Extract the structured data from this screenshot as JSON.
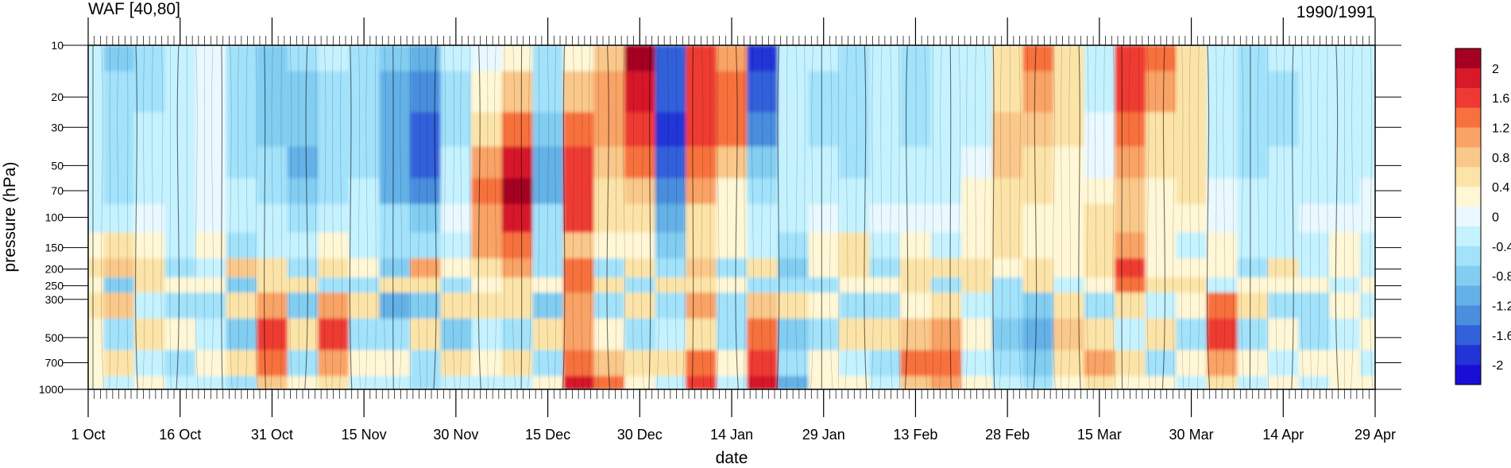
{
  "chart_data": {
    "type": "heatmap",
    "title": "WAF [40,80]",
    "subtitle": "1990/1991",
    "xlabel": "date",
    "ylabel": "pressure (hPa)",
    "y_scale": "log",
    "y_inverted": true,
    "ylim": [
      1000,
      10
    ],
    "xlim": [
      "1 Oct",
      "29 Apr"
    ],
    "x_ticks": [
      "1 Oct",
      "16 Oct",
      "31 Oct",
      "15 Nov",
      "30 Nov",
      "15 Dec",
      "30 Dec",
      "14 Jan",
      "29 Jan",
      "13 Feb",
      "28 Feb",
      "15 Mar",
      "30 Mar",
      "14 Apr",
      "29 Apr"
    ],
    "y_ticks": [
      10,
      20,
      30,
      50,
      70,
      100,
      150,
      200,
      250,
      300,
      500,
      700,
      1000
    ],
    "colorbar": {
      "labels": [
        "2",
        "1.6",
        "1.2",
        "0.8",
        "0.4",
        "0",
        "-0.4",
        "-0.8",
        "-1.2",
        "-1.6",
        "-2"
      ],
      "colors": [
        "#a50021",
        "#d7192a",
        "#ee3a33",
        "#f7713e",
        "#f9a366",
        "#f9c88a",
        "#fce4a8",
        "#fff7d6",
        "#e9f9ff",
        "#c5f2ff",
        "#a2e2fb",
        "#82cdf2",
        "#63b1e6",
        "#4a8ede",
        "#3161db",
        "#2234d6",
        "#1a0ed6"
      ]
    },
    "day_ticks": {
      "start": "1 Oct",
      "end": "29 Apr",
      "step_days": 1
    },
    "sample_days": [
      0,
      5,
      10,
      15,
      20,
      25,
      30,
      35,
      40,
      45,
      50,
      55,
      60,
      65,
      70,
      75,
      80,
      85,
      90,
      95,
      100,
      105,
      110,
      115,
      120,
      125,
      130,
      135,
      140,
      145,
      150,
      155,
      160,
      165,
      170,
      175,
      180,
      185,
      190,
      195,
      200,
      205,
      210
    ],
    "upper_levels_hPa": [
      10,
      20,
      30,
      50,
      70,
      100
    ],
    "lower_levels_hPa": [
      150,
      200,
      250,
      300,
      500,
      700,
      1000
    ],
    "upper_values": [
      [
        -0.3,
        -0.2,
        -0.2,
        -0.3,
        -0.3,
        -0.2
      ],
      [
        -0.8,
        -0.7,
        -0.7,
        -0.6,
        -0.5,
        -0.3
      ],
      [
        -0.5,
        -0.5,
        -0.4,
        -0.3,
        -0.2,
        -0.1
      ],
      [
        -0.2,
        -0.2,
        -0.3,
        -0.3,
        -0.3,
        -0.2
      ],
      [
        -0.1,
        -0.1,
        0.0,
        -0.1,
        -0.1,
        -0.1
      ],
      [
        -0.6,
        -0.7,
        -0.6,
        -0.5,
        -0.4,
        -0.2
      ],
      [
        -0.9,
        -0.9,
        -0.8,
        -0.7,
        -0.5,
        -0.3
      ],
      [
        -0.7,
        -0.8,
        -0.9,
        -1.0,
        -0.8,
        -0.5
      ],
      [
        -0.4,
        -0.5,
        -0.6,
        -0.7,
        -0.6,
        -0.3
      ],
      [
        -0.5,
        -0.6,
        -0.6,
        -0.5,
        -0.4,
        -0.2
      ],
      [
        -0.8,
        -1.0,
        -1.1,
        -1.2,
        -1.0,
        -0.6
      ],
      [
        -1.2,
        -1.5,
        -1.6,
        -1.6,
        -1.4,
        -0.9
      ],
      [
        -0.4,
        -0.5,
        -0.5,
        -0.4,
        -0.2,
        0.0
      ],
      [
        0.1,
        0.3,
        0.6,
        1.0,
        1.3,
        1.2
      ],
      [
        0.3,
        0.8,
        1.5,
        2.0,
        2.2,
        2.0
      ],
      [
        -0.5,
        -0.6,
        -0.8,
        -1.0,
        -1.0,
        -0.6
      ],
      [
        0.4,
        0.8,
        1.3,
        1.7,
        1.8,
        1.6
      ],
      [
        0.9,
        1.0,
        1.0,
        0.9,
        0.7,
        0.5
      ],
      [
        2.2,
        2.0,
        1.7,
        1.3,
        0.9,
        0.6
      ],
      [
        -1.6,
        -1.8,
        -1.9,
        -1.8,
        -1.5,
        -1.0
      ],
      [
        1.6,
        1.7,
        1.6,
        1.4,
        1.1,
        0.6
      ],
      [
        1.2,
        1.5,
        1.3,
        0.8,
        0.4,
        0.2
      ],
      [
        -2.0,
        -1.8,
        -1.4,
        -0.9,
        -0.5,
        -0.2
      ],
      [
        -0.3,
        -0.4,
        -0.4,
        -0.4,
        -0.3,
        -0.2
      ],
      [
        -0.4,
        -0.5,
        -0.5,
        -0.4,
        -0.3,
        -0.1
      ],
      [
        -0.6,
        -0.7,
        -0.6,
        -0.5,
        -0.4,
        -0.2
      ],
      [
        -0.4,
        -0.4,
        -0.4,
        -0.3,
        -0.2,
        -0.1
      ],
      [
        -0.5,
        -0.6,
        -0.5,
        -0.4,
        -0.3,
        -0.1
      ],
      [
        -0.3,
        -0.4,
        -0.3,
        -0.3,
        -0.2,
        0.0
      ],
      [
        -0.2,
        -0.3,
        -0.2,
        0.1,
        0.3,
        0.4
      ],
      [
        0.5,
        0.7,
        0.9,
        0.9,
        0.7,
        0.5
      ],
      [
        1.5,
        1.1,
        0.8,
        0.6,
        0.5,
        0.4
      ],
      [
        0.7,
        0.6,
        0.5,
        0.4,
        0.3,
        0.2
      ],
      [
        -0.3,
        -0.2,
        -0.1,
        0.1,
        0.4,
        0.6
      ],
      [
        1.8,
        1.6,
        1.3,
        1.0,
        0.9,
        0.9
      ],
      [
        1.3,
        1.0,
        0.7,
        0.5,
        0.4,
        0.3
      ],
      [
        0.6,
        0.7,
        0.7,
        0.6,
        0.5,
        0.3
      ],
      [
        -0.4,
        -0.4,
        -0.3,
        -0.2,
        -0.1,
        0.1
      ],
      [
        -0.5,
        -0.6,
        -0.6,
        -0.5,
        -0.4,
        -0.2
      ],
      [
        -0.4,
        -0.5,
        -0.5,
        -0.4,
        -0.3,
        -0.2
      ],
      [
        -0.2,
        -0.3,
        -0.3,
        -0.2,
        -0.2,
        -0.1
      ],
      [
        -0.3,
        -0.4,
        -0.3,
        -0.3,
        -0.2,
        -0.1
      ],
      [
        -0.2,
        -0.3,
        -0.3,
        -0.2,
        -0.1,
        -0.1
      ]
    ],
    "lower_values": [
      [
        0.2,
        0.5,
        0.4,
        0.6,
        0.3,
        0.4,
        0.2
      ],
      [
        0.5,
        0.9,
        -0.9,
        0.8,
        -0.6,
        0.7,
        -0.4
      ],
      [
        0.3,
        0.7,
        0.6,
        -0.4,
        0.5,
        -0.3,
        0.3
      ],
      [
        -0.4,
        -0.6,
        0.4,
        -0.7,
        0.3,
        -0.5,
        -0.2
      ],
      [
        0.2,
        -0.3,
        0.4,
        -0.6,
        -0.4,
        0.3,
        -0.4
      ],
      [
        -0.6,
        0.8,
        -0.9,
        0.6,
        -0.8,
        0.5,
        -0.7
      ],
      [
        -0.3,
        0.5,
        0.7,
        1.2,
        1.6,
        1.3,
        0.8
      ],
      [
        -0.4,
        -0.7,
        0.6,
        -0.9,
        0.7,
        -0.6,
        0.4
      ],
      [
        0.3,
        0.6,
        -0.5,
        1.1,
        1.7,
        1.1,
        0.6
      ],
      [
        -0.2,
        0.4,
        -0.6,
        0.5,
        -0.6,
        0.4,
        -0.3
      ],
      [
        -0.5,
        -0.8,
        0.5,
        -1.0,
        -0.7,
        0.4,
        -0.4
      ],
      [
        -0.6,
        1.2,
        0.5,
        -0.8,
        0.5,
        -0.7,
        -0.5
      ],
      [
        -0.3,
        0.4,
        -0.7,
        0.6,
        -0.9,
        0.5,
        -0.3
      ],
      [
        1.0,
        0.6,
        0.3,
        0.5,
        -0.4,
        0.3,
        -0.2
      ],
      [
        1.5,
        1.1,
        0.7,
        0.6,
        -0.6,
        0.5,
        -0.3
      ],
      [
        -0.5,
        -0.7,
        0.4,
        -0.8,
        0.6,
        -0.5,
        0.3
      ],
      [
        0.8,
        1.3,
        1.5,
        1.2,
        1.0,
        1.4,
        1.9
      ],
      [
        0.3,
        -0.5,
        0.6,
        -0.7,
        0.4,
        0.9,
        1.5
      ],
      [
        0.4,
        0.6,
        -0.5,
        0.7,
        -0.6,
        0.5,
        0.3
      ],
      [
        -0.8,
        -0.6,
        0.5,
        -0.7,
        -0.4,
        0.5,
        -0.3
      ],
      [
        0.5,
        0.8,
        0.6,
        1.0,
        0.7,
        1.3,
        1.7
      ],
      [
        0.3,
        -0.5,
        0.4,
        -0.6,
        -0.5,
        0.4,
        -0.3
      ],
      [
        -0.3,
        0.5,
        -0.6,
        0.9,
        1.4,
        1.7,
        1.9
      ],
      [
        -0.6,
        -0.8,
        -0.5,
        0.6,
        -0.9,
        -0.7,
        -1.0
      ],
      [
        0.3,
        0.4,
        -0.5,
        0.4,
        -0.6,
        0.4,
        0.3
      ],
      [
        0.6,
        0.5,
        0.4,
        -0.5,
        0.7,
        -0.4,
        0.3
      ],
      [
        -0.3,
        -0.7,
        0.4,
        -0.6,
        0.5,
        -0.6,
        -0.4
      ],
      [
        0.4,
        0.6,
        0.5,
        0.4,
        0.9,
        1.3,
        0.8
      ],
      [
        -0.3,
        0.5,
        -0.6,
        0.7,
        1.2,
        1.5,
        1.1
      ],
      [
        0.4,
        0.6,
        0.5,
        -0.4,
        0.4,
        -0.3,
        0.2
      ],
      [
        0.5,
        0.4,
        -0.5,
        -0.7,
        -0.8,
        -0.6,
        -0.4
      ],
      [
        0.3,
        0.5,
        0.6,
        -0.8,
        -1.2,
        -0.9,
        -0.5
      ],
      [
        0.2,
        0.4,
        -0.4,
        0.6,
        0.9,
        0.5,
        0.3
      ],
      [
        0.6,
        0.5,
        0.4,
        -0.5,
        0.7,
        1.1,
        0.6
      ],
      [
        1.2,
        1.6,
        1.3,
        0.7,
        -0.4,
        0.5,
        0.3
      ],
      [
        0.4,
        0.3,
        0.5,
        -0.4,
        0.6,
        -0.5,
        0.3
      ],
      [
        -0.3,
        0.4,
        0.6,
        0.4,
        -0.5,
        0.4,
        -0.3
      ],
      [
        0.2,
        0.3,
        -0.4,
        1.3,
        1.6,
        1.2,
        0.7
      ],
      [
        -0.4,
        -0.5,
        0.3,
        0.5,
        -0.6,
        0.4,
        -0.4
      ],
      [
        -0.3,
        0.5,
        0.4,
        -0.5,
        0.3,
        -0.4,
        0.2
      ],
      [
        -0.2,
        -0.4,
        0.3,
        -0.6,
        -0.5,
        0.3,
        -0.3
      ],
      [
        0.2,
        0.3,
        -0.3,
        0.4,
        -0.4,
        0.3,
        0.2
      ],
      [
        -0.2,
        -0.3,
        0.2,
        -0.3,
        0.3,
        -0.2,
        0.4
      ]
    ]
  }
}
